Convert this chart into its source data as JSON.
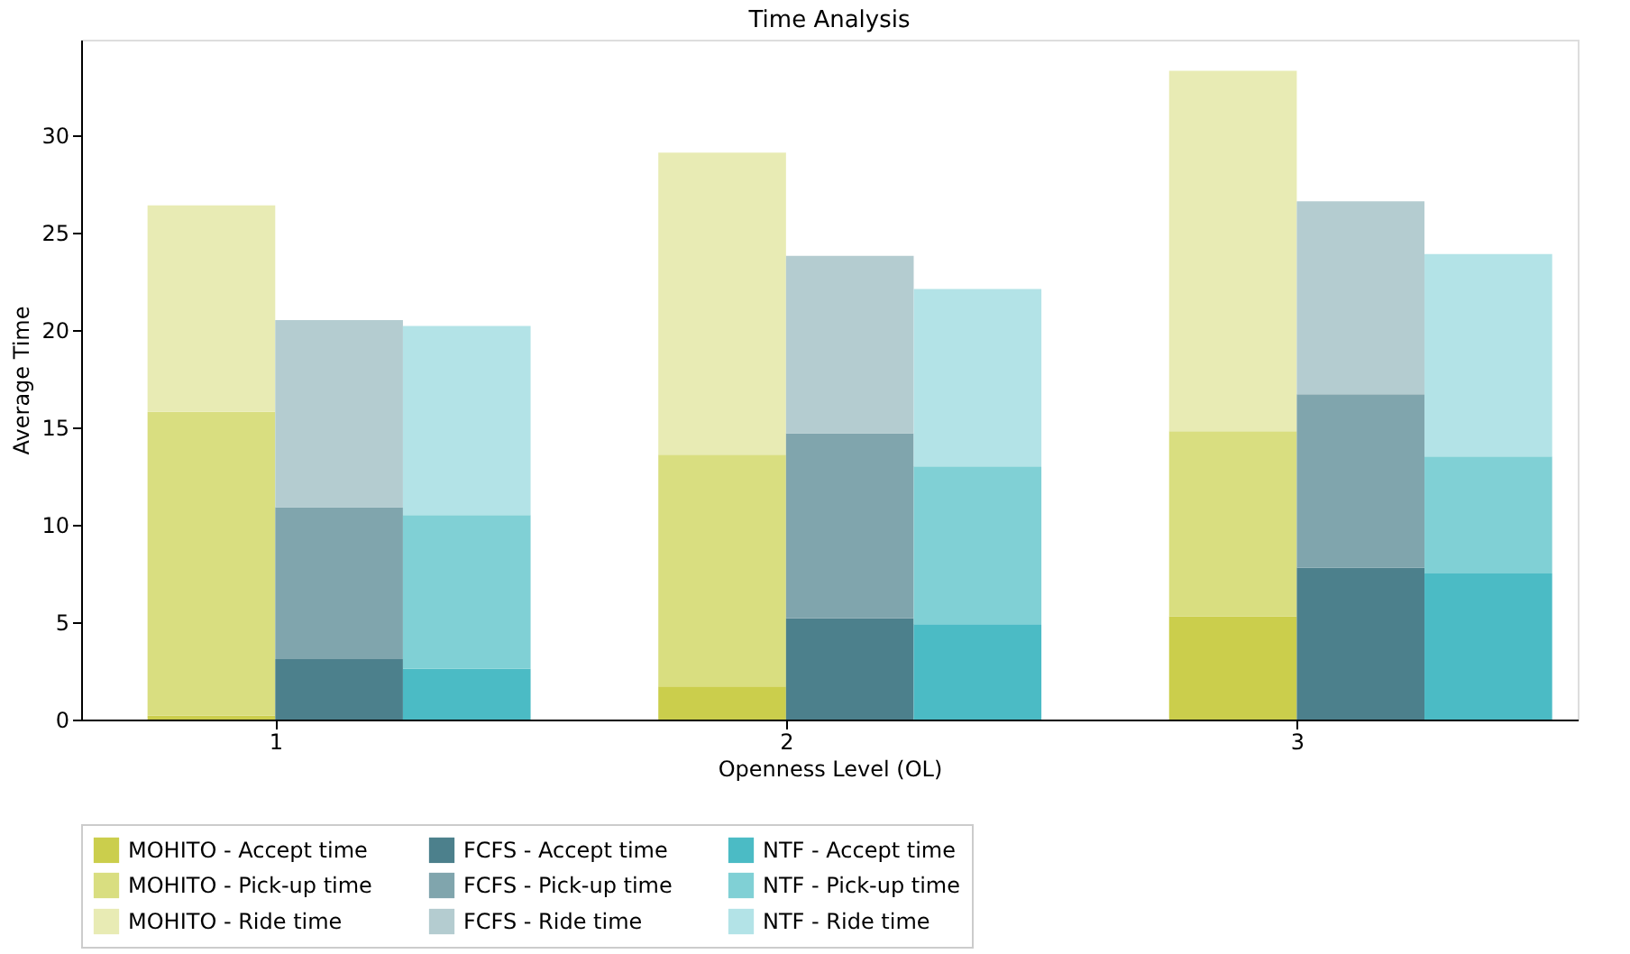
{
  "chart_data": {
    "type": "bar",
    "title": "Time Analysis",
    "xlabel": "Openness Level (OL)",
    "ylabel": "Average Time",
    "xlim": [
      0.62,
      3.55
    ],
    "xticks": [
      1,
      2,
      3
    ],
    "ylim": [
      0,
      34.9
    ],
    "yticks": [
      0,
      5,
      10,
      15,
      20,
      25,
      30
    ],
    "grid": false,
    "legend": "bottom",
    "series": [
      {
        "name": "MOHITO - Accept time",
        "color": "#cbce4c",
        "x": [
          0.875,
          1.875,
          2.875
        ],
        "base": [
          0,
          0,
          0
        ],
        "values": [
          0.2,
          1.7,
          5.3
        ]
      },
      {
        "name": "MOHITO - Pick-up time",
        "color": "#d9de80",
        "x": [
          0.875,
          1.875,
          2.875
        ],
        "base": [
          0.2,
          1.7,
          5.3
        ],
        "values": [
          15.6,
          11.9,
          9.5
        ]
      },
      {
        "name": "MOHITO - Ride time",
        "color": "#e8ebb4",
        "x": [
          0.875,
          1.875,
          2.875
        ],
        "base": [
          15.8,
          13.6,
          14.8
        ],
        "values": [
          10.6,
          15.5,
          18.5
        ]
      },
      {
        "name": "FCFS - Accept time",
        "color": "#4c808c",
        "x": [
          1.125,
          2.125,
          3.125
        ],
        "base": [
          0,
          0,
          0
        ],
        "values": [
          3.1,
          5.2,
          7.8
        ]
      },
      {
        "name": "FCFS - Pick-up time",
        "color": "#80a5ad",
        "x": [
          1.125,
          2.125,
          3.125
        ],
        "base": [
          3.1,
          5.2,
          7.8
        ],
        "values": [
          7.8,
          9.5,
          8.9
        ]
      },
      {
        "name": "FCFS - Ride time",
        "color": "#b4ccd0",
        "x": [
          1.125,
          2.125,
          3.125
        ],
        "base": [
          10.9,
          14.7,
          16.7
        ],
        "values": [
          9.6,
          9.1,
          9.9
        ]
      },
      {
        "name": "NTF - Accept time",
        "color": "#4bbbc5",
        "x": [
          1.375,
          2.375,
          3.375
        ],
        "base": [
          0,
          0,
          0
        ],
        "values": [
          2.6,
          4.9,
          7.5
        ]
      },
      {
        "name": "NTF - Pick-up time",
        "color": "#80d0d5",
        "x": [
          1.375,
          2.375,
          3.375
        ],
        "base": [
          2.6,
          4.9,
          7.5
        ],
        "values": [
          7.9,
          8.1,
          6.0
        ]
      },
      {
        "name": "NTF - Ride time",
        "color": "#b3e3e7",
        "x": [
          1.375,
          2.375,
          3.375
        ],
        "base": [
          10.5,
          13.0,
          13.5
        ],
        "values": [
          9.7,
          9.1,
          10.4
        ]
      }
    ]
  }
}
